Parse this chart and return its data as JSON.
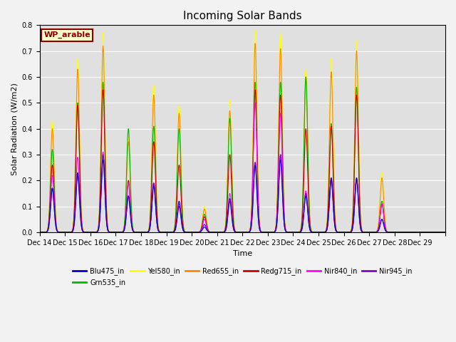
{
  "title": "Incoming Solar Bands",
  "xlabel": "Time",
  "ylabel": "Solar Radiation (W/m2)",
  "ylim": [
    0.0,
    0.8
  ],
  "legend_label": "WP_arable",
  "series_order": [
    "Yel580_in",
    "Red655_in",
    "Grn535_in",
    "Redg715_in",
    "Nir840_in",
    "Nir945_in",
    "Blu475_in"
  ],
  "series": {
    "Blu475_in": {
      "color": "#0000cc",
      "lw": 0.8
    },
    "Grn535_in": {
      "color": "#00bb00",
      "lw": 0.8
    },
    "Yel580_in": {
      "color": "#ffff00",
      "lw": 0.8
    },
    "Red655_in": {
      "color": "#ff8800",
      "lw": 0.8
    },
    "Redg715_in": {
      "color": "#cc0000",
      "lw": 0.8
    },
    "Nir840_in": {
      "color": "#ff00ff",
      "lw": 0.8
    },
    "Nir945_in": {
      "color": "#8800cc",
      "lw": 1.0
    }
  },
  "peaks_yel": [
    0.43,
    0.67,
    0.77,
    0.37,
    0.57,
    0.49,
    0.1,
    0.51,
    0.78,
    0.77,
    0.63,
    0.67,
    0.74,
    0.23,
    0.0,
    0.0
  ],
  "peaks_red": [
    0.4,
    0.63,
    0.72,
    0.35,
    0.53,
    0.46,
    0.09,
    0.47,
    0.73,
    0.71,
    0.6,
    0.62,
    0.7,
    0.21,
    0.0,
    0.0
  ],
  "peaks_grn": [
    0.32,
    0.5,
    0.58,
    0.4,
    0.41,
    0.4,
    0.07,
    0.44,
    0.58,
    0.58,
    0.6,
    0.42,
    0.56,
    0.12,
    0.0,
    0.0
  ],
  "peaks_redg": [
    0.26,
    0.49,
    0.55,
    0.2,
    0.35,
    0.26,
    0.06,
    0.3,
    0.55,
    0.53,
    0.4,
    0.41,
    0.53,
    0.11,
    0.0,
    0.0
  ],
  "peaks_nir840": [
    0.22,
    0.29,
    0.31,
    0.19,
    0.19,
    0.11,
    0.05,
    0.15,
    0.5,
    0.46,
    0.16,
    0.21,
    0.21,
    0.11,
    0.0,
    0.0
  ],
  "peaks_nir945": [
    0.17,
    0.22,
    0.3,
    0.14,
    0.19,
    0.1,
    0.03,
    0.12,
    0.27,
    0.3,
    0.15,
    0.2,
    0.2,
    0.05,
    0.0,
    0.0
  ],
  "peaks_blu": [
    0.17,
    0.23,
    0.28,
    0.14,
    0.18,
    0.12,
    0.02,
    0.13,
    0.26,
    0.28,
    0.14,
    0.21,
    0.21,
    0.05,
    0.0,
    0.0
  ],
  "n_days": 16,
  "sigma": 0.07,
  "days": [
    "Dec 14",
    "Dec 15",
    "Dec 16",
    "Dec 17",
    "Dec 18",
    "Dec 19",
    "Dec 20",
    "Dec 21",
    "Dec 22",
    "Dec 23",
    "Dec 24",
    "Dec 25",
    "Dec 26",
    "Dec 27",
    "Dec 28",
    "Dec 29"
  ],
  "plot_bg": "#e0e0e0",
  "fig_bg": "#f2f2f2",
  "legend_ncol": 6,
  "title_fontsize": 11,
  "axis_fontsize": 8,
  "tick_fontsize": 7
}
